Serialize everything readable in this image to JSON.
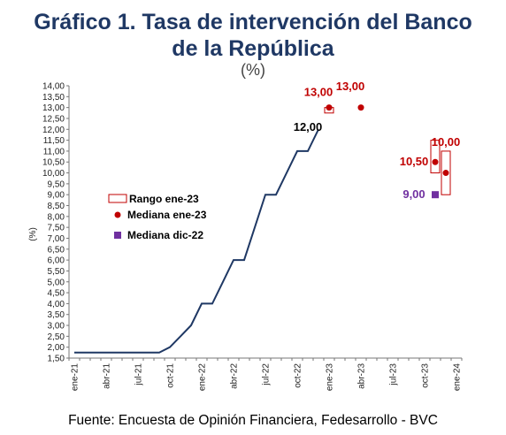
{
  "title_line1": "Gráfico 1. Tasa de intervención del Banco",
  "title_line2": "de la República",
  "subtitle": "(%)",
  "source": "Fuente: Encuesta de Opinión Financiera, Fedesarrollo - BVC",
  "colors": {
    "title": "#1f3864",
    "line": "#1f3864",
    "red": "#c00000",
    "purple": "#7030a0"
  },
  "chart_data": {
    "type": "line",
    "ylabel": "(%)",
    "ylim": [
      1.5,
      14.0
    ],
    "ytick_step": 0.5,
    "xlabels": [
      "ene-21",
      "abr-21",
      "jul-21",
      "oct-21",
      "ene-22",
      "abr-22",
      "jul-22",
      "oct-22",
      "ene-23",
      "abr-23",
      "jul-23",
      "oct-23",
      "ene-24"
    ],
    "series": [
      {
        "kind": "line",
        "x": [
          "ene-21",
          "feb-21",
          "mar-21",
          "abr-21",
          "may-21",
          "jun-21",
          "jul-21",
          "ago-21",
          "sep-21",
          "oct-21",
          "nov-21",
          "dic-21",
          "ene-22",
          "feb-22",
          "mar-22",
          "abr-22",
          "may-22",
          "jun-22",
          "jul-22",
          "ago-22",
          "sep-22",
          "oct-22",
          "nov-22",
          "dic-22"
        ],
        "y": [
          1.75,
          1.75,
          1.75,
          1.75,
          1.75,
          1.75,
          1.75,
          1.75,
          1.75,
          2.0,
          2.5,
          3.0,
          4.0,
          4.0,
          5.0,
          6.0,
          6.0,
          7.5,
          9.0,
          9.0,
          10.0,
          11.0,
          11.0,
          12.0
        ]
      },
      {
        "kind": "range",
        "name": "Rango ene-23",
        "ranges": [
          {
            "x": "ene-23",
            "low": 12.75,
            "high": 13.0
          },
          {
            "x": "nov-23",
            "low": 10.0,
            "high": 11.5
          },
          {
            "x": "dic-23",
            "low": 9.0,
            "high": 11.0
          }
        ]
      },
      {
        "kind": "points",
        "name": "Mediana ene-23",
        "points": [
          {
            "x": "ene-23",
            "y": 13.0
          },
          {
            "x": "abr-23",
            "y": 13.0
          },
          {
            "x": "nov-23",
            "y": 10.5
          },
          {
            "x": "dic-23",
            "y": 10.0
          }
        ]
      },
      {
        "kind": "points",
        "name": "Mediana dic-22",
        "points": [
          {
            "x": "nov-23",
            "y": 9.0
          }
        ]
      }
    ],
    "annotations": [
      {
        "text": "12,00",
        "x": "nov-22",
        "y": 12.1,
        "color": "black"
      },
      {
        "text": "13,00",
        "x": "dic-22",
        "y": 13.7,
        "color": "red"
      },
      {
        "text": "13,00",
        "x": "mar-23",
        "y": 13.95,
        "color": "red"
      },
      {
        "text": "10,50",
        "x": "sep-23",
        "y": 10.5,
        "color": "red"
      },
      {
        "text": "10,00",
        "x": "dic-23",
        "y": 11.4,
        "color": "red"
      },
      {
        "text": "9,00",
        "x": "sep-23",
        "y": 9.0,
        "color": "purple"
      }
    ],
    "legend_placement": "center-left"
  }
}
